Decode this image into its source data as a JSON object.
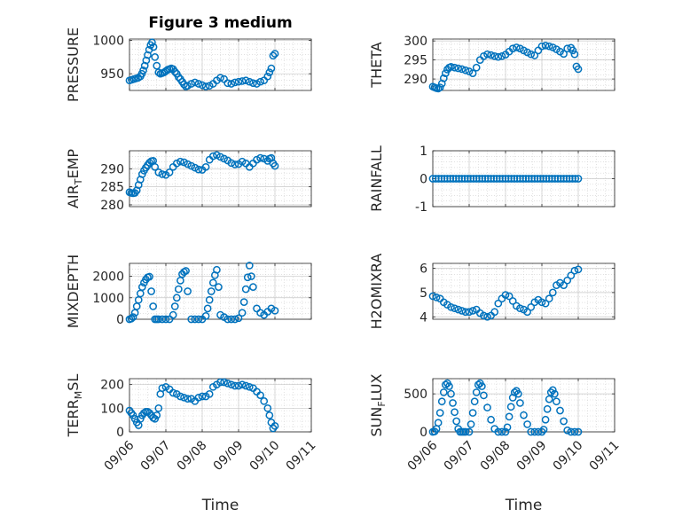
{
  "chart_data": [
    {
      "type": "scatter",
      "title": "Figure 3 medium",
      "ylabel": "PRESSURE",
      "xlabel": "",
      "xlim": [
        0,
        5
      ],
      "ylim": [
        925,
        1002
      ],
      "yticks": [
        950,
        1000
      ],
      "xticks": [
        "09/06",
        "09/07",
        "09/08",
        "09/09",
        "09/10",
        "09/11"
      ],
      "x": [
        0.0,
        0.06,
        0.12,
        0.18,
        0.24,
        0.3,
        0.34,
        0.38,
        0.42,
        0.46,
        0.5,
        0.54,
        0.58,
        0.62,
        0.66,
        0.7,
        0.75,
        0.8,
        0.85,
        0.9,
        0.95,
        1.0,
        1.05,
        1.1,
        1.15,
        1.2,
        1.25,
        1.3,
        1.35,
        1.4,
        1.45,
        1.5,
        1.55,
        1.6,
        1.7,
        1.8,
        1.9,
        2.0,
        2.1,
        2.2,
        2.3,
        2.4,
        2.5,
        2.6,
        2.7,
        2.8,
        2.9,
        3.0,
        3.1,
        3.2,
        3.3,
        3.4,
        3.5,
        3.6,
        3.7,
        3.8,
        3.85,
        3.9,
        3.95,
        4.0
      ],
      "y": [
        940,
        941,
        942,
        943,
        944,
        946,
        950,
        955,
        962,
        970,
        978,
        986,
        993,
        997,
        990,
        975,
        962,
        952,
        950,
        951,
        952,
        954,
        956,
        957,
        958,
        957,
        953,
        950,
        945,
        942,
        938,
        934,
        931,
        932,
        935,
        937,
        935,
        933,
        931,
        932,
        935,
        940,
        944,
        942,
        936,
        935,
        937,
        938,
        939,
        940,
        938,
        936,
        935,
        938,
        940,
        946,
        952,
        958,
        977,
        980
      ]
    },
    {
      "type": "scatter",
      "title": "",
      "ylabel": "THETA",
      "xlabel": "",
      "xlim": [
        0,
        5
      ],
      "ylim": [
        287,
        300.5
      ],
      "yticks": [
        290,
        295,
        300
      ],
      "xticks": [
        "09/06",
        "09/07",
        "09/08",
        "09/09",
        "09/10",
        "09/11"
      ],
      "x": [
        0.0,
        0.05,
        0.1,
        0.15,
        0.2,
        0.25,
        0.3,
        0.35,
        0.4,
        0.45,
        0.5,
        0.6,
        0.7,
        0.8,
        0.9,
        1.0,
        1.1,
        1.2,
        1.3,
        1.4,
        1.5,
        1.6,
        1.7,
        1.8,
        1.9,
        2.0,
        2.1,
        2.2,
        2.3,
        2.4,
        2.5,
        2.6,
        2.7,
        2.8,
        2.9,
        3.0,
        3.1,
        3.2,
        3.3,
        3.4,
        3.5,
        3.6,
        3.7,
        3.8,
        3.85,
        3.9,
        3.95,
        4.0
      ],
      "y": [
        288.0,
        287.8,
        287.6,
        287.5,
        287.8,
        288.8,
        290.2,
        291.5,
        292.5,
        293.0,
        293.2,
        293.0,
        292.8,
        292.6,
        292.3,
        292.0,
        291.5,
        293.0,
        295.0,
        296.0,
        296.5,
        296.3,
        296.0,
        295.8,
        296.0,
        296.4,
        297.2,
        298.0,
        298.3,
        298.0,
        297.5,
        297.0,
        296.5,
        296.2,
        297.5,
        298.6,
        298.8,
        298.6,
        298.3,
        297.8,
        297.2,
        296.6,
        298.0,
        298.2,
        297.5,
        296.5,
        293.3,
        292.6
      ]
    },
    {
      "type": "scatter",
      "title": "",
      "ylabel": "AIR_TEMP",
      "xlabel": "",
      "xlim": [
        0,
        5
      ],
      "ylim": [
        279.5,
        295
      ],
      "yticks": [
        280,
        285,
        290
      ],
      "xticks": [
        "09/06",
        "09/07",
        "09/08",
        "09/09",
        "09/10",
        "09/11"
      ],
      "x": [
        0.0,
        0.05,
        0.1,
        0.15,
        0.2,
        0.25,
        0.3,
        0.35,
        0.4,
        0.45,
        0.5,
        0.55,
        0.6,
        0.65,
        0.7,
        0.8,
        0.9,
        1.0,
        1.1,
        1.2,
        1.3,
        1.4,
        1.5,
        1.6,
        1.7,
        1.8,
        1.9,
        2.0,
        2.1,
        2.2,
        2.3,
        2.4,
        2.5,
        2.6,
        2.7,
        2.8,
        2.9,
        3.0,
        3.1,
        3.2,
        3.3,
        3.4,
        3.5,
        3.6,
        3.7,
        3.8,
        3.85,
        3.9,
        3.95,
        4.0
      ],
      "y": [
        283.5,
        283.3,
        283.2,
        283.3,
        284.0,
        285.5,
        287.0,
        288.5,
        289.5,
        290.3,
        291.0,
        291.7,
        292.1,
        292.2,
        290.5,
        289.0,
        288.5,
        288.3,
        289.0,
        290.5,
        291.5,
        292.0,
        291.8,
        291.3,
        290.8,
        290.3,
        289.8,
        289.7,
        290.5,
        292.5,
        293.5,
        293.8,
        293.3,
        292.8,
        292.3,
        291.6,
        291.2,
        291.3,
        292.0,
        291.5,
        290.5,
        291.5,
        292.5,
        293.0,
        292.8,
        292.2,
        292.8,
        293.0,
        291.5,
        290.8
      ]
    },
    {
      "type": "scatter",
      "title": "",
      "ylabel": "RAINFALL",
      "xlabel": "",
      "xlim": [
        0,
        5
      ],
      "ylim": [
        -1,
        1
      ],
      "yticks": [
        -1,
        0,
        1
      ],
      "xticks": [
        "09/06",
        "09/07",
        "09/08",
        "09/09",
        "09/10",
        "09/11"
      ],
      "x": [
        0.0,
        0.08,
        0.16,
        0.24,
        0.32,
        0.4,
        0.48,
        0.56,
        0.64,
        0.72,
        0.8,
        0.88,
        0.96,
        1.04,
        1.12,
        1.2,
        1.28,
        1.36,
        1.44,
        1.52,
        1.6,
        1.68,
        1.76,
        1.84,
        1.92,
        2.0,
        2.08,
        2.16,
        2.24,
        2.32,
        2.4,
        2.48,
        2.56,
        2.64,
        2.72,
        2.8,
        2.88,
        2.96,
        3.04,
        3.12,
        3.2,
        3.28,
        3.36,
        3.44,
        3.52,
        3.6,
        3.68,
        3.76,
        3.84,
        3.92,
        4.0
      ],
      "y": [
        0,
        0,
        0,
        0,
        0,
        0,
        0,
        0,
        0,
        0,
        0,
        0,
        0,
        0,
        0,
        0,
        0,
        0,
        0,
        0,
        0,
        0,
        0,
        0,
        0,
        0,
        0,
        0,
        0,
        0,
        0,
        0,
        0,
        0,
        0,
        0,
        0,
        0,
        0,
        0,
        0,
        0,
        0,
        0,
        0,
        0,
        0,
        0,
        0,
        0,
        0
      ]
    },
    {
      "type": "scatter",
      "title": "",
      "ylabel": "MIXDEPTH",
      "xlabel": "",
      "xlim": [
        0,
        5
      ],
      "ylim": [
        0,
        2600
      ],
      "yticks": [
        0,
        1000,
        2000
      ],
      "xticks": [
        "09/06",
        "09/07",
        "09/08",
        "09/09",
        "09/10",
        "09/11"
      ],
      "x": [
        0.0,
        0.05,
        0.1,
        0.15,
        0.2,
        0.25,
        0.3,
        0.35,
        0.4,
        0.45,
        0.5,
        0.55,
        0.6,
        0.65,
        0.7,
        0.75,
        0.8,
        0.9,
        1.0,
        1.1,
        1.2,
        1.25,
        1.3,
        1.35,
        1.4,
        1.45,
        1.5,
        1.55,
        1.6,
        1.7,
        1.8,
        1.9,
        2.0,
        2.1,
        2.15,
        2.2,
        2.25,
        2.3,
        2.35,
        2.4,
        2.45,
        2.5,
        2.6,
        2.7,
        2.8,
        2.9,
        3.0,
        3.1,
        3.15,
        3.2,
        3.25,
        3.3,
        3.35,
        3.4,
        3.5,
        3.6,
        3.7,
        3.8,
        3.9,
        4.0
      ],
      "y": [
        0,
        30,
        100,
        300,
        600,
        900,
        1200,
        1500,
        1700,
        1850,
        1950,
        1980,
        1300,
        600,
        0,
        0,
        0,
        0,
        0,
        0,
        200,
        600,
        1000,
        1400,
        1800,
        2100,
        2200,
        2250,
        1300,
        0,
        0,
        0,
        0,
        150,
        500,
        900,
        1300,
        1700,
        2050,
        2300,
        1500,
        200,
        100,
        0,
        0,
        0,
        50,
        300,
        800,
        1400,
        1950,
        2500,
        2000,
        1500,
        500,
        300,
        200,
        350,
        500,
        400
      ]
    },
    {
      "type": "scatter",
      "title": "",
      "ylabel": "H2OMIXRA",
      "xlabel": "",
      "xlim": [
        0,
        5
      ],
      "ylim": [
        3.9,
        6.2
      ],
      "yticks": [
        4,
        5,
        6
      ],
      "xticks": [
        "09/06",
        "09/07",
        "09/08",
        "09/09",
        "09/10",
        "09/11"
      ],
      "x": [
        0.0,
        0.1,
        0.2,
        0.3,
        0.4,
        0.5,
        0.6,
        0.7,
        0.8,
        0.9,
        1.0,
        1.1,
        1.2,
        1.3,
        1.4,
        1.5,
        1.6,
        1.7,
        1.8,
        1.9,
        2.0,
        2.1,
        2.2,
        2.3,
        2.4,
        2.5,
        2.6,
        2.7,
        2.8,
        2.9,
        3.0,
        3.1,
        3.2,
        3.3,
        3.4,
        3.5,
        3.6,
        3.7,
        3.8,
        3.9,
        4.0
      ],
      "y": [
        4.85,
        4.8,
        4.75,
        4.6,
        4.5,
        4.4,
        4.35,
        4.3,
        4.25,
        4.2,
        4.2,
        4.25,
        4.3,
        4.15,
        4.05,
        4.0,
        4.05,
        4.2,
        4.55,
        4.75,
        4.9,
        4.85,
        4.65,
        4.45,
        4.35,
        4.3,
        4.2,
        4.4,
        4.6,
        4.7,
        4.6,
        4.55,
        4.75,
        5.0,
        5.3,
        5.4,
        5.3,
        5.5,
        5.7,
        5.9,
        5.95
      ]
    },
    {
      "type": "scatter",
      "title": "",
      "ylabel": "TERR_MSL",
      "xlabel": "Time",
      "xlim": [
        0,
        5
      ],
      "ylim": [
        0,
        225
      ],
      "yticks": [
        0,
        100,
        200
      ],
      "xticks": [
        "09/06",
        "09/07",
        "09/08",
        "09/09",
        "09/10",
        "09/11"
      ],
      "x": [
        0.0,
        0.05,
        0.1,
        0.15,
        0.2,
        0.25,
        0.3,
        0.35,
        0.4,
        0.45,
        0.5,
        0.55,
        0.6,
        0.65,
        0.7,
        0.75,
        0.8,
        0.85,
        0.9,
        1.0,
        1.1,
        1.2,
        1.3,
        1.4,
        1.5,
        1.6,
        1.7,
        1.8,
        1.9,
        2.0,
        2.1,
        2.2,
        2.3,
        2.4,
        2.5,
        2.6,
        2.7,
        2.8,
        2.9,
        3.0,
        3.1,
        3.2,
        3.3,
        3.4,
        3.5,
        3.6,
        3.7,
        3.8,
        3.85,
        3.9,
        3.95,
        4.0
      ],
      "y": [
        90,
        80,
        70,
        55,
        40,
        28,
        55,
        70,
        80,
        85,
        85,
        80,
        70,
        60,
        55,
        70,
        100,
        160,
        185,
        190,
        180,
        165,
        160,
        150,
        145,
        140,
        140,
        130,
        145,
        150,
        150,
        160,
        190,
        200,
        210,
        210,
        205,
        200,
        195,
        195,
        200,
        195,
        190,
        185,
        170,
        155,
        130,
        100,
        70,
        40,
        15,
        25
      ]
    },
    {
      "type": "scatter",
      "title": "",
      "ylabel": "SUN_FLUX",
      "xlabel": "Time",
      "xlim": [
        0,
        5
      ],
      "ylim": [
        0,
        700
      ],
      "yticks": [
        0,
        500
      ],
      "xticks": [
        "09/06",
        "09/07",
        "09/08",
        "09/09",
        "09/10",
        "09/11"
      ],
      "x": [
        0.0,
        0.05,
        0.1,
        0.15,
        0.2,
        0.25,
        0.3,
        0.35,
        0.4,
        0.45,
        0.5,
        0.55,
        0.6,
        0.65,
        0.7,
        0.75,
        0.8,
        0.85,
        0.9,
        1.0,
        1.05,
        1.1,
        1.15,
        1.2,
        1.25,
        1.3,
        1.35,
        1.4,
        1.5,
        1.6,
        1.7,
        1.8,
        1.9,
        2.0,
        2.05,
        2.1,
        2.15,
        2.2,
        2.25,
        2.3,
        2.35,
        2.4,
        2.5,
        2.6,
        2.7,
        2.8,
        2.9,
        3.0,
        3.05,
        3.1,
        3.15,
        3.2,
        3.25,
        3.3,
        3.35,
        3.4,
        3.5,
        3.6,
        3.7,
        3.8,
        3.9,
        4.0
      ],
      "y": [
        0,
        5,
        40,
        120,
        250,
        400,
        520,
        620,
        640,
        600,
        500,
        380,
        260,
        140,
        40,
        0,
        0,
        0,
        0,
        0,
        100,
        250,
        400,
        520,
        620,
        640,
        600,
        480,
        320,
        160,
        40,
        0,
        0,
        0,
        60,
        200,
        330,
        450,
        520,
        540,
        500,
        380,
        220,
        100,
        0,
        0,
        0,
        0,
        30,
        160,
        300,
        430,
        520,
        550,
        500,
        400,
        280,
        140,
        20,
        0,
        0,
        0
      ]
    }
  ]
}
